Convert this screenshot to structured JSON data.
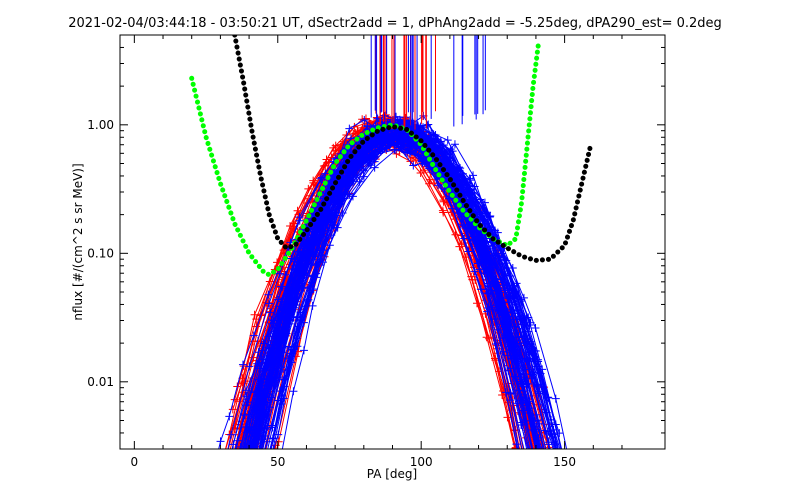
{
  "chart_data": {
    "type": "scatter",
    "title": "2021-02-04/03:44:18 - 03:50:21 UT, dSectr2add = 1, dPhAng2add = -5.25deg, dPA290_est=   0.2deg",
    "xlabel": "PA [deg]",
    "ylabel": "nflux [#/(cm^2 s sr MeV)]",
    "xlim": [
      -5,
      185
    ],
    "ylim": [
      0.003,
      5
    ],
    "yscale": "log",
    "x_ticks": [
      0,
      50,
      100,
      150
    ],
    "x_tick_labels": [
      "0",
      "50",
      "100",
      "150"
    ],
    "y_ticks": [
      0.01,
      0.1,
      1.0
    ],
    "y_tick_labels": [
      "0.01",
      "0.10",
      "1.00"
    ],
    "grid": false,
    "colors": {
      "red_series": "#ff0000",
      "blue_series": "#0000ff",
      "green_fit": "#00ff00",
      "black_fit": "#000000",
      "axes": "#000000"
    },
    "series": [
      {
        "color": "green",
        "style": "dotted-thick",
        "x": [
          20,
          25,
          30,
          35,
          40,
          45,
          47,
          50,
          55,
          60,
          65,
          70,
          75,
          80,
          85,
          90,
          95,
          100,
          105,
          110,
          115,
          120,
          125,
          130,
          133,
          135,
          137,
          139,
          141
        ],
        "y": [
          2.3,
          0.8,
          0.35,
          0.17,
          0.1,
          0.072,
          0.068,
          0.075,
          0.11,
          0.18,
          0.3,
          0.5,
          0.7,
          0.85,
          0.95,
          1.0,
          0.92,
          0.7,
          0.45,
          0.3,
          0.21,
          0.16,
          0.13,
          0.115,
          0.13,
          0.25,
          0.7,
          2.0,
          4.5
        ]
      },
      {
        "color": "black",
        "style": "dotted-thick",
        "x": [
          35,
          38,
          41,
          44,
          47,
          50,
          53,
          56,
          60,
          65,
          70,
          75,
          80,
          85,
          90,
          95,
          100,
          105,
          110,
          115,
          120,
          125,
          130,
          135,
          140,
          145,
          150,
          153,
          156,
          159
        ],
        "y": [
          5.0,
          2.2,
          0.9,
          0.4,
          0.2,
          0.13,
          0.11,
          0.115,
          0.15,
          0.22,
          0.35,
          0.55,
          0.75,
          0.9,
          0.97,
          0.92,
          0.75,
          0.55,
          0.38,
          0.25,
          0.17,
          0.13,
          0.11,
          0.095,
          0.088,
          0.09,
          0.115,
          0.18,
          0.35,
          0.68
        ]
      }
    ],
    "bundles": [
      {
        "color": "red",
        "description": "many red trace lines with + markers",
        "peak_x": 90,
        "peak_y": 0.95
      },
      {
        "color": "blue",
        "description": "many blue trace lines with + markers",
        "peak_x": 92,
        "peak_y": 0.95
      }
    ]
  }
}
